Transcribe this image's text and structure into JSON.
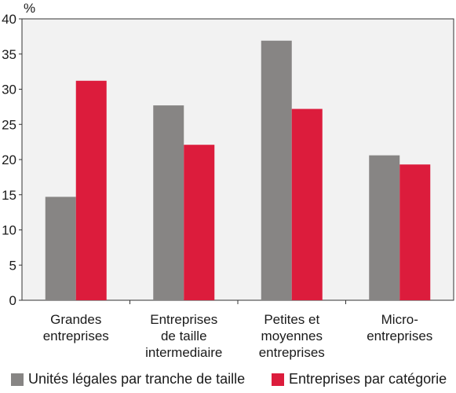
{
  "chart_data": {
    "type": "bar",
    "ylabel": "%",
    "ylim": [
      0,
      40
    ],
    "yticks": [
      0,
      5,
      10,
      15,
      20,
      25,
      30,
      35,
      40
    ],
    "categories": [
      [
        "Grandes",
        "entreprises"
      ],
      [
        "Entreprises",
        "de taille",
        "intermediaire"
      ],
      [
        "Petites et",
        "moyennes",
        "entreprises"
      ],
      [
        "Micro-",
        "entreprises"
      ]
    ],
    "series": [
      {
        "name": "Unités légales par tranche de taille",
        "color": "#878584",
        "values": [
          14.7,
          27.7,
          36.9,
          20.6
        ]
      },
      {
        "name": "Entreprises par catégorie",
        "color": "#dc1c3c",
        "values": [
          31.2,
          22.1,
          27.2,
          19.3
        ]
      }
    ],
    "grid": false,
    "legend_position": "bottom",
    "plot_background": "#f2f2f2"
  }
}
